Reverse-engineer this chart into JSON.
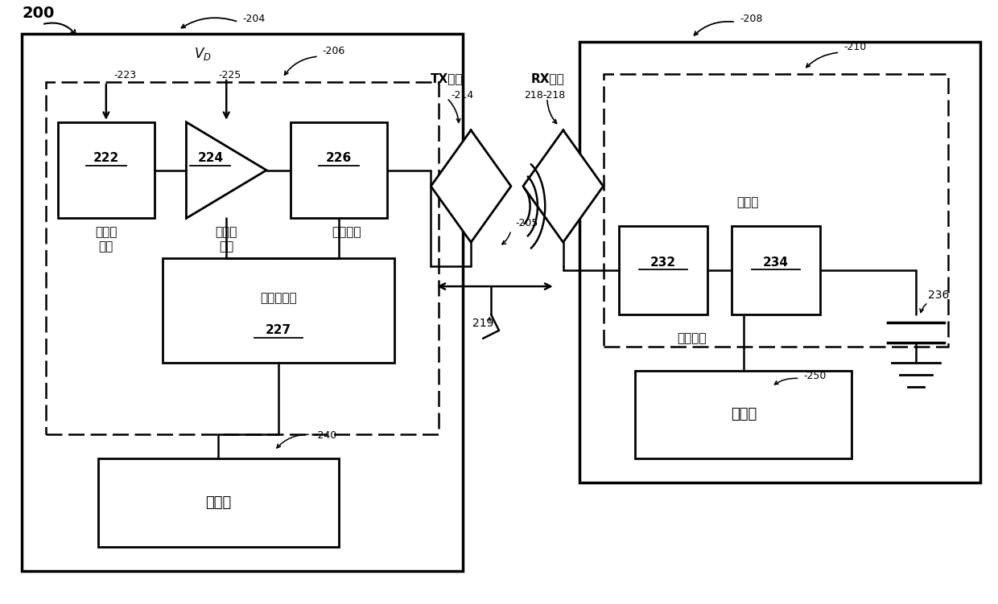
{
  "bg": "#ffffff",
  "fw": 12.4,
  "fh": 7.51,
  "lw_outer": 2.5,
  "lw_inner": 2.0,
  "lw_wire": 1.8,
  "lw_dash": 1.8,
  "fs_cn_large": 11,
  "fs_cn_med": 9,
  "fs_num_large": 11,
  "fs_num_small": 9,
  "fs_ref": 9,
  "text_222_top": "222",
  "text_222_bot": "振荚器\n电路",
  "text_224_top": "224",
  "text_224_bot": "驱动器\n电路",
  "text_226_top": "226",
  "text_226_bot": "前端电路",
  "text_227a": "阻抗控制，",
  "text_227b": "227",
  "text_240": "控制器",
  "text_232": "232",
  "text_234": "234",
  "text_250": "控制器",
  "text_rectifier": "整流器",
  "text_frontend": "前端电路",
  "text_tx": "TX元件",
  "text_rx": "RX元件",
  "text_vd": "V",
  "text_vd_sub": "D",
  "ref_200": "200",
  "ref_204": "204",
  "ref_206": "206",
  "ref_208": "208",
  "ref_210": "210",
  "ref_214": "214",
  "ref_218": "218",
  "ref_223": "223",
  "ref_225": "225",
  "ref_205": "205",
  "ref_219": "219",
  "ref_236": "236",
  "ref_240": "240",
  "ref_250": "250"
}
